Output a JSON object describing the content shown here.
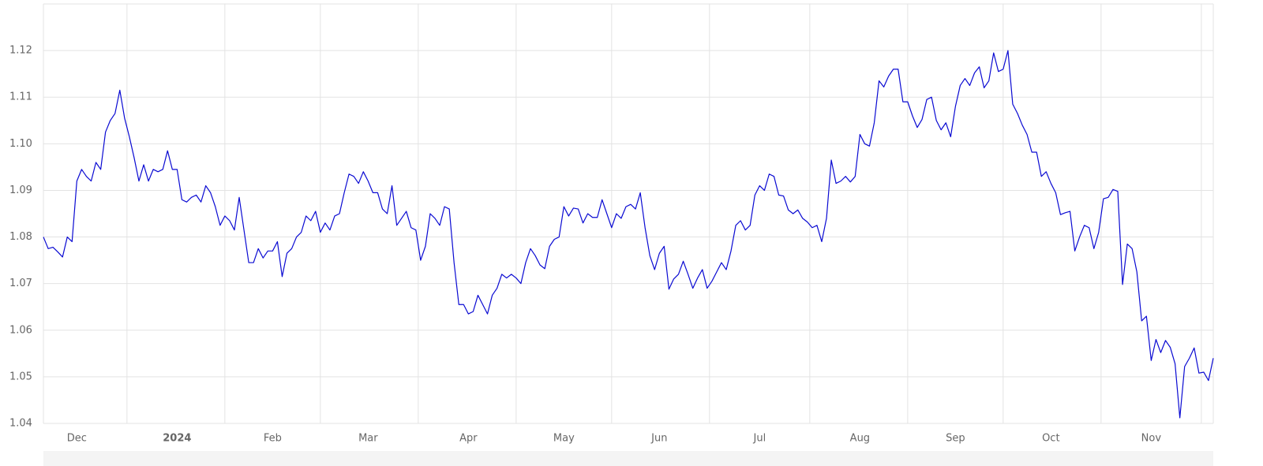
{
  "chart_data": {
    "type": "line",
    "color": "#0a0ad2",
    "ylim": [
      1.04,
      1.13
    ],
    "yticks": [
      1.04,
      1.05,
      1.06,
      1.07,
      1.08,
      1.09,
      {
        "value": 1.1,
        "label": "1.10"
      },
      1.11,
      1.12
    ],
    "grid": true,
    "categories": [
      null,
      null,
      null,
      null,
      null,
      null,
      null,
      "Dec",
      null,
      null,
      null,
      null,
      null,
      null,
      null,
      null,
      null,
      null,
      null,
      null,
      null,
      null,
      null,
      null,
      null,
      null,
      null,
      null,
      "2024",
      null,
      null,
      null,
      null,
      null,
      null,
      null,
      null,
      null,
      null,
      null,
      null,
      null,
      null,
      null,
      null,
      null,
      null,
      null,
      "Feb",
      null,
      null,
      null,
      null,
      null,
      null,
      null,
      null,
      null,
      null,
      null,
      null,
      null,
      null,
      null,
      null,
      null,
      null,
      null,
      "Mar",
      null,
      null,
      null,
      null,
      null,
      null,
      null,
      null,
      null,
      null,
      null,
      null,
      null,
      null,
      null,
      null,
      null,
      null,
      null,
      null,
      "Apr",
      null,
      null,
      null,
      null,
      null,
      null,
      null,
      null,
      null,
      null,
      null,
      null,
      null,
      null,
      null,
      null,
      null,
      null,
      null,
      "May",
      null,
      null,
      null,
      null,
      null,
      null,
      null,
      null,
      null,
      null,
      null,
      null,
      null,
      null,
      null,
      null,
      null,
      null,
      null,
      "Jun",
      null,
      null,
      null,
      null,
      null,
      null,
      null,
      null,
      null,
      null,
      null,
      null,
      null,
      null,
      null,
      null,
      null,
      null,
      null,
      null,
      "Jul",
      null,
      null,
      null,
      null,
      null,
      null,
      null,
      null,
      null,
      null,
      null,
      null,
      null,
      null,
      null,
      null,
      null,
      null,
      null,
      null,
      "Aug",
      null,
      null,
      null,
      null,
      null,
      null,
      null,
      null,
      null,
      null,
      null,
      null,
      null,
      null,
      null,
      null,
      null,
      null,
      null,
      "Sep",
      null,
      null,
      null,
      null,
      null,
      null,
      null,
      null,
      null,
      null,
      null,
      null,
      null,
      null,
      null,
      null,
      null,
      null,
      null,
      "Oct",
      null,
      null,
      null,
      null,
      null,
      null,
      null,
      null,
      null,
      null,
      null,
      null,
      null,
      null,
      null,
      null,
      null,
      null,
      null,
      null,
      "Nov",
      null,
      null,
      null,
      null,
      null,
      null,
      null,
      null,
      null,
      null,
      null,
      null,
      null
    ],
    "values": [
      1.08,
      1.0775,
      1.0778,
      1.0768,
      1.0757,
      1.08,
      1.079,
      1.092,
      1.0945,
      1.093,
      1.092,
      1.096,
      1.0945,
      1.1025,
      1.105,
      1.1065,
      1.1115,
      1.1055,
      1.1015,
      1.097,
      1.092,
      1.0955,
      1.092,
      1.0945,
      1.094,
      1.0945,
      1.0985,
      1.0945,
      1.0945,
      1.088,
      1.0875,
      1.0885,
      1.089,
      1.0875,
      1.091,
      1.0895,
      1.0865,
      1.0825,
      1.0845,
      1.0835,
      1.0815,
      1.0885,
      1.0815,
      1.0745,
      1.0745,
      1.0775,
      1.0755,
      1.077,
      1.077,
      1.079,
      1.0715,
      1.0765,
      1.0775,
      1.08,
      1.081,
      1.0845,
      1.0835,
      1.0855,
      1.081,
      1.083,
      1.0815,
      1.0845,
      1.085,
      1.0895,
      1.0935,
      1.093,
      1.0915,
      1.094,
      1.092,
      1.0895,
      1.0895,
      1.086,
      1.085,
      1.091,
      1.0825,
      1.084,
      1.0855,
      1.082,
      1.0815,
      1.075,
      1.078,
      1.085,
      1.084,
      1.0825,
      1.0865,
      1.086,
      1.0745,
      1.0655,
      1.0655,
      1.0635,
      1.064,
      1.0675,
      1.0655,
      1.0635,
      1.0675,
      1.069,
      1.072,
      1.0712,
      1.072,
      1.0712,
      1.07,
      1.0745,
      1.0775,
      1.076,
      1.074,
      1.0732,
      1.078,
      1.0795,
      1.08,
      1.0865,
      1.0845,
      1.0862,
      1.086,
      1.083,
      1.085,
      1.0842,
      1.0842,
      1.088,
      1.085,
      1.082,
      1.085,
      1.084,
      1.0865,
      1.087,
      1.086,
      1.0895,
      1.082,
      1.076,
      1.073,
      1.0765,
      1.078,
      1.0688,
      1.071,
      1.072,
      1.0748,
      1.072,
      1.069,
      1.0712,
      1.073,
      1.069,
      1.0705,
      1.0725,
      1.0745,
      1.073,
      1.077,
      1.0825,
      1.0835,
      1.0815,
      1.0825,
      1.089,
      1.091,
      1.09,
      1.0935,
      1.093,
      1.089,
      1.0888,
      1.0858,
      1.085,
      1.0858,
      1.084,
      1.0832,
      1.082,
      1.0825,
      1.079,
      1.084,
      1.0965,
      1.0915,
      1.092,
      1.093,
      1.0918,
      1.093,
      1.102,
      1.1,
      1.0995,
      1.1045,
      1.1135,
      1.1122,
      1.1145,
      1.116,
      1.116,
      1.109,
      1.109,
      1.106,
      1.1035,
      1.1052,
      1.1095,
      1.11,
      1.105,
      1.103,
      1.1045,
      1.1015,
      1.108,
      1.1125,
      1.114,
      1.1125,
      1.1152,
      1.1165,
      1.112,
      1.1135,
      1.1195,
      1.1155,
      1.116,
      1.12,
      1.1085,
      1.1065,
      1.104,
      1.102,
      1.0982,
      1.0982,
      1.093,
      1.094,
      1.0915,
      1.0895,
      1.0848,
      1.0852,
      1.0855,
      1.077,
      1.08,
      1.0825,
      1.082,
      1.0775,
      1.081,
      1.0882,
      1.0885,
      1.0902,
      1.0898,
      1.0698,
      1.0785,
      1.0775,
      1.0725,
      1.062,
      1.063,
      1.0535,
      1.058,
      1.0552,
      1.0578,
      1.0563,
      1.0528,
      1.0412,
      1.0522,
      1.054,
      1.0562,
      1.0508,
      1.051,
      1.0492,
      1.054
    ]
  }
}
